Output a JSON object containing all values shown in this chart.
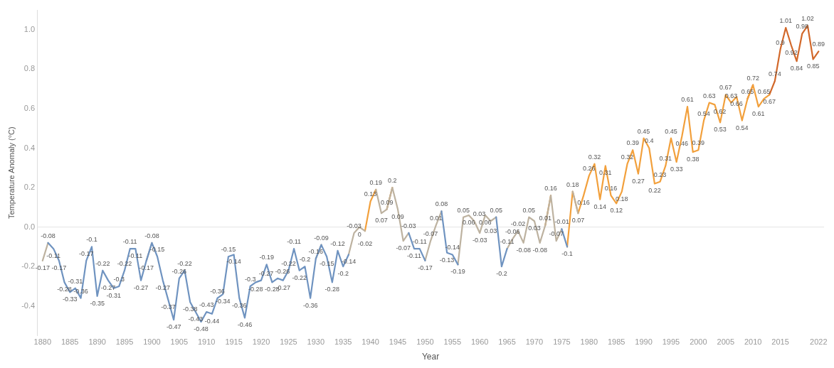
{
  "chart_data": {
    "type": "line",
    "xlabel": "Year",
    "ylabel": "Temperature Anomaly (°C)",
    "x": [
      1880,
      1881,
      1882,
      1883,
      1884,
      1885,
      1886,
      1887,
      1888,
      1889,
      1890,
      1891,
      1892,
      1893,
      1894,
      1895,
      1896,
      1897,
      1898,
      1899,
      1900,
      1901,
      1902,
      1903,
      1904,
      1905,
      1906,
      1907,
      1908,
      1909,
      1910,
      1911,
      1912,
      1913,
      1914,
      1915,
      1916,
      1917,
      1918,
      1919,
      1920,
      1921,
      1922,
      1923,
      1924,
      1925,
      1926,
      1927,
      1928,
      1929,
      1930,
      1931,
      1932,
      1933,
      1934,
      1935,
      1936,
      1937,
      1938,
      1939,
      1940,
      1941,
      1942,
      1943,
      1944,
      1945,
      1946,
      1947,
      1948,
      1949,
      1950,
      1951,
      1952,
      1953,
      1954,
      1955,
      1956,
      1957,
      1958,
      1959,
      1960,
      1961,
      1962,
      1963,
      1964,
      1965,
      1966,
      1967,
      1968,
      1969,
      1970,
      1971,
      1972,
      1973,
      1974,
      1975,
      1976,
      1977,
      1978,
      1979,
      1980,
      1981,
      1982,
      1983,
      1984,
      1985,
      1986,
      1987,
      1988,
      1989,
      1990,
      1991,
      1992,
      1993,
      1994,
      1995,
      1996,
      1997,
      1998,
      1999,
      2000,
      2001,
      2002,
      2003,
      2004,
      2005,
      2006,
      2007,
      2008,
      2009,
      2010,
      2011,
      2012,
      2013,
      2014,
      2015,
      2016,
      2017,
      2018,
      2019,
      2020,
      2021,
      2022
    ],
    "series": [
      {
        "color": "#6f93c0",
        "values": [
          null,
          -0.08,
          -0.11,
          -0.17,
          -0.28,
          -0.33,
          -0.31,
          -0.36,
          -0.17,
          -0.1,
          -0.35,
          -0.22,
          -0.27,
          -0.31,
          -0.3,
          -0.22,
          -0.11,
          -0.11,
          -0.27,
          -0.17,
          -0.08,
          -0.15,
          -0.27,
          -0.37,
          -0.47,
          -0.26,
          -0.22,
          -0.38,
          -0.43,
          -0.48,
          -0.43,
          -0.44,
          -0.36,
          -0.34,
          -0.15,
          -0.14,
          -0.36,
          -0.46,
          -0.3,
          -0.28,
          -0.27,
          -0.19,
          -0.28,
          -0.26,
          -0.27,
          -0.22,
          -0.11,
          -0.22,
          -0.2,
          -0.36,
          -0.16,
          -0.09,
          -0.15,
          -0.28,
          -0.12,
          -0.2,
          -0.14,
          null,
          null,
          null,
          null,
          null,
          null,
          null,
          null,
          null,
          null,
          -0.03,
          -0.11,
          -0.11,
          -0.17,
          null,
          null,
          0.08,
          -0.13,
          -0.14,
          -0.19,
          null,
          null,
          null,
          null,
          null,
          null,
          0.05,
          -0.2,
          -0.11,
          null,
          null,
          null,
          null,
          null,
          null,
          null,
          null,
          null,
          -0.01,
          -0.1,
          null,
          null,
          null,
          null,
          null,
          null,
          null,
          null,
          null,
          null,
          null,
          null,
          null,
          null,
          null,
          null,
          null,
          null,
          null,
          null,
          null,
          null,
          null,
          null,
          null,
          null,
          null,
          null,
          null,
          null,
          null,
          null,
          null,
          null,
          null,
          null,
          null,
          null,
          null,
          null,
          null,
          null,
          null,
          null,
          null,
          null
        ],
        "value_labels": [
          null,
          "-0.08",
          "-0.11",
          "-0.17",
          "-0.28",
          "-0.33",
          "-0.31",
          "-0.36",
          "-0.17",
          "-0.1",
          "-0.35",
          "-0.22",
          "-0.27",
          "-0.31",
          "-0.3",
          "-0.22",
          "-0.11",
          "-0.11",
          "-0.27",
          "-0.17",
          "-0.08",
          "-0.15",
          "-0.27",
          "-0.37",
          "-0.47",
          "-0.26",
          "-0.22",
          "-0.38",
          "-0.43",
          "-0.48",
          "-0.43",
          "-0.44",
          "-0.36",
          "-0.34",
          "-0.15",
          "-0.14",
          "-0.36",
          "-0.46",
          "-0.3",
          "-0.28",
          "-0.27",
          "-0.19",
          "-0.28",
          "-0.26",
          "-0.27",
          "-0.22",
          "-0.11",
          "-0.22",
          "-0.2",
          "-0.36",
          "-0.16",
          "-0.09",
          "-0.15",
          "-0.28",
          "-0.12",
          "-0.2",
          "-0.14",
          null,
          null,
          null,
          null,
          null,
          null,
          null,
          null,
          null,
          null,
          "-0.03",
          "-0.11",
          "-0.11",
          "-0.17",
          null,
          null,
          "0.08",
          "-0.13",
          "-0.14",
          "-0.19",
          null,
          null,
          null,
          null,
          null,
          null,
          "0.05",
          "-0.2",
          "-0.11",
          null,
          null,
          null,
          null,
          null,
          null,
          null,
          null,
          null,
          "-0.01",
          "-0.1",
          null,
          null,
          null,
          null,
          null,
          null,
          null,
          null,
          null,
          null,
          null,
          null,
          null,
          null,
          null,
          null,
          null,
          null,
          null,
          null,
          null,
          null,
          null,
          null,
          null,
          null,
          null,
          null,
          null,
          null,
          null,
          null,
          null,
          null,
          null,
          null,
          null,
          null,
          null,
          null,
          null,
          null,
          null,
          null,
          null,
          null
        ]
      },
      {
        "color": "#bdb2a0",
        "values": [
          -0.17,
          -0.08,
          null,
          null,
          null,
          null,
          null,
          null,
          null,
          null,
          null,
          null,
          null,
          null,
          null,
          null,
          null,
          null,
          null,
          -0.17,
          -0.08,
          null,
          null,
          null,
          null,
          null,
          null,
          null,
          null,
          null,
          null,
          null,
          null,
          null,
          null,
          null,
          null,
          null,
          null,
          null,
          null,
          null,
          null,
          null,
          null,
          null,
          null,
          null,
          null,
          null,
          -0.16,
          -0.09,
          null,
          null,
          null,
          null,
          -0.14,
          -0.03,
          0,
          -0.02,
          null,
          0.19,
          0.07,
          0.09,
          0.2,
          0.09,
          -0.07,
          -0.03,
          null,
          null,
          -0.17,
          -0.07,
          0.01,
          0.08,
          null,
          null,
          -0.19,
          0.05,
          0.06,
          0.03,
          -0.03,
          0.06,
          0.03,
          0.05,
          null,
          -0.11,
          -0.06,
          -0.02,
          -0.08,
          0.05,
          0.03,
          -0.08,
          0.01,
          0.16,
          -0.07,
          -0.01,
          null,
          0.18,
          0.07,
          null,
          null,
          null,
          null,
          null,
          null,
          null,
          null,
          null,
          null,
          null,
          null,
          null,
          null,
          null,
          null,
          null,
          null,
          null,
          null,
          null,
          null,
          null,
          null,
          null,
          null,
          null,
          null,
          null,
          null,
          null,
          null,
          null,
          null,
          null,
          null,
          null,
          null,
          null,
          null,
          null,
          null,
          null,
          null
        ],
        "value_labels": [
          "-0.17",
          null,
          null,
          null,
          null,
          null,
          null,
          null,
          null,
          null,
          null,
          null,
          null,
          null,
          null,
          null,
          null,
          null,
          null,
          null,
          null,
          null,
          null,
          null,
          null,
          null,
          null,
          null,
          null,
          null,
          null,
          null,
          null,
          null,
          null,
          null,
          null,
          null,
          null,
          null,
          null,
          null,
          null,
          null,
          null,
          null,
          null,
          null,
          null,
          null,
          null,
          null,
          null,
          null,
          null,
          null,
          null,
          "-0.03",
          "0",
          "-0.02",
          null,
          "0.19",
          "0.07",
          "0.09",
          "0.2",
          "0.09",
          "-0.07",
          null,
          null,
          null,
          null,
          "-0.07",
          "0.01",
          null,
          null,
          null,
          null,
          "0.05",
          "0.06",
          "0.03",
          "-0.03",
          "0.06",
          "0.03",
          null,
          null,
          null,
          "-0.06",
          "-0.02",
          "-0.08",
          "0.05",
          "0.03",
          "-0.08",
          "0.01",
          "0.16",
          "-0.07",
          null,
          null,
          "0.18",
          "0.07",
          null,
          null,
          null,
          null,
          null,
          null,
          null,
          null,
          null,
          null,
          null,
          null,
          null,
          null,
          null,
          null,
          null,
          null,
          null,
          null,
          null,
          null,
          null,
          null,
          null,
          null,
          null,
          null,
          null,
          null,
          null,
          null,
          null,
          null,
          null,
          null,
          null,
          null,
          null,
          null,
          null,
          null,
          null,
          null
        ]
      },
      {
        "color": "#f2a03c",
        "values": [
          null,
          null,
          null,
          null,
          null,
          null,
          null,
          null,
          null,
          null,
          null,
          null,
          null,
          null,
          null,
          null,
          null,
          null,
          null,
          null,
          null,
          null,
          null,
          null,
          null,
          null,
          null,
          null,
          null,
          null,
          null,
          null,
          null,
          null,
          null,
          null,
          null,
          null,
          null,
          null,
          null,
          null,
          null,
          null,
          null,
          null,
          null,
          null,
          null,
          null,
          null,
          null,
          null,
          null,
          null,
          null,
          null,
          null,
          null,
          -0.02,
          0.13,
          0.19,
          null,
          0.09,
          0.2,
          null,
          null,
          null,
          null,
          null,
          null,
          null,
          null,
          null,
          null,
          null,
          null,
          null,
          null,
          null,
          null,
          null,
          null,
          null,
          null,
          null,
          null,
          null,
          null,
          null,
          null,
          null,
          0.01,
          0.16,
          null,
          null,
          -0.1,
          0.18,
          0.07,
          0.16,
          0.26,
          0.32,
          0.14,
          0.31,
          0.16,
          0.12,
          0.18,
          0.32,
          0.39,
          0.27,
          0.45,
          0.4,
          0.22,
          0.23,
          0.31,
          0.45,
          0.33,
          0.46,
          0.61,
          0.38,
          0.39,
          0.54,
          0.63,
          0.62,
          0.53,
          0.67,
          0.63,
          0.66,
          0.54,
          0.65,
          0.72,
          0.61,
          0.65,
          0.67,
          null,
          null,
          null,
          null,
          null,
          null,
          null,
          null,
          null
        ],
        "value_labels": [
          null,
          null,
          null,
          null,
          null,
          null,
          null,
          null,
          null,
          null,
          null,
          null,
          null,
          null,
          null,
          null,
          null,
          null,
          null,
          null,
          null,
          null,
          null,
          null,
          null,
          null,
          null,
          null,
          null,
          null,
          null,
          null,
          null,
          null,
          null,
          null,
          null,
          null,
          null,
          null,
          null,
          null,
          null,
          null,
          null,
          null,
          null,
          null,
          null,
          null,
          null,
          null,
          null,
          null,
          null,
          null,
          null,
          null,
          null,
          null,
          "0.13",
          null,
          null,
          null,
          null,
          null,
          null,
          null,
          null,
          null,
          null,
          null,
          null,
          null,
          null,
          null,
          null,
          null,
          null,
          null,
          null,
          null,
          null,
          null,
          null,
          null,
          null,
          null,
          null,
          null,
          null,
          null,
          null,
          null,
          null,
          null,
          null,
          null,
          null,
          "0.16",
          "0.26",
          "0.32",
          "0.14",
          "0.31",
          "0.16",
          "0.12",
          "0.18",
          "0.32",
          "0.39",
          "0.27",
          "0.45",
          "0.4",
          "0.22",
          "0.23",
          "0.31",
          "0.45",
          "0.33",
          "0.46",
          "0.61",
          "0.38",
          "0.39",
          "0.54",
          "0.63",
          "0.62",
          "0.53",
          "0.67",
          "0.63",
          "0.66",
          "0.54",
          "0.65",
          "0.72",
          "0.61",
          "0.65",
          "0.67",
          null,
          null,
          null,
          null,
          null,
          null,
          null,
          null,
          null
        ]
      },
      {
        "color": "#d2682a",
        "values": [
          null,
          null,
          null,
          null,
          null,
          null,
          null,
          null,
          null,
          null,
          null,
          null,
          null,
          null,
          null,
          null,
          null,
          null,
          null,
          null,
          null,
          null,
          null,
          null,
          null,
          null,
          null,
          null,
          null,
          null,
          null,
          null,
          null,
          null,
          null,
          null,
          null,
          null,
          null,
          null,
          null,
          null,
          null,
          null,
          null,
          null,
          null,
          null,
          null,
          null,
          null,
          null,
          null,
          null,
          null,
          null,
          null,
          null,
          null,
          null,
          null,
          null,
          null,
          null,
          null,
          null,
          null,
          null,
          null,
          null,
          null,
          null,
          null,
          null,
          null,
          null,
          null,
          null,
          null,
          null,
          null,
          null,
          null,
          null,
          null,
          null,
          null,
          null,
          null,
          null,
          null,
          null,
          null,
          null,
          null,
          null,
          null,
          null,
          null,
          null,
          null,
          null,
          null,
          null,
          null,
          null,
          null,
          null,
          null,
          null,
          null,
          null,
          null,
          null,
          null,
          null,
          null,
          null,
          null,
          null,
          null,
          null,
          null,
          null,
          null,
          null,
          null,
          null,
          null,
          0.65,
          0.72,
          null,
          null,
          0.67,
          0.74,
          0.9,
          1.01,
          0.92,
          0.84,
          0.98,
          1.02,
          0.85,
          0.89
        ],
        "value_labels": [
          null,
          null,
          null,
          null,
          null,
          null,
          null,
          null,
          null,
          null,
          null,
          null,
          null,
          null,
          null,
          null,
          null,
          null,
          null,
          null,
          null,
          null,
          null,
          null,
          null,
          null,
          null,
          null,
          null,
          null,
          null,
          null,
          null,
          null,
          null,
          null,
          null,
          null,
          null,
          null,
          null,
          null,
          null,
          null,
          null,
          null,
          null,
          null,
          null,
          null,
          null,
          null,
          null,
          null,
          null,
          null,
          null,
          null,
          null,
          null,
          null,
          null,
          null,
          null,
          null,
          null,
          null,
          null,
          null,
          null,
          null,
          null,
          null,
          null,
          null,
          null,
          null,
          null,
          null,
          null,
          null,
          null,
          null,
          null,
          null,
          null,
          null,
          null,
          null,
          null,
          null,
          null,
          null,
          null,
          null,
          null,
          null,
          null,
          null,
          null,
          null,
          null,
          null,
          null,
          null,
          null,
          null,
          null,
          null,
          null,
          null,
          null,
          null,
          null,
          null,
          null,
          null,
          null,
          null,
          null,
          null,
          null,
          null,
          null,
          null,
          null,
          null,
          null,
          null,
          null,
          null,
          null,
          null,
          null,
          "0.74",
          "0.9",
          "1.01",
          "0.92",
          "0.84",
          "0.98",
          "1.02",
          "0.85",
          "0.89"
        ]
      }
    ],
    "xlim": [
      1879,
      2023
    ],
    "xticks": [
      1880,
      1885,
      1890,
      1895,
      1900,
      1905,
      1910,
      1915,
      1920,
      1925,
      1930,
      1935,
      1940,
      1945,
      1950,
      1955,
      1960,
      1965,
      1970,
      1975,
      1980,
      1985,
      1990,
      1995,
      2000,
      2005,
      2010,
      2015,
      2022
    ],
    "ylim": [
      -0.55,
      1.1
    ],
    "yticks": [
      {
        "value": -0.4,
        "label": "-0.4"
      },
      {
        "value": -0.2,
        "label": "-0.2"
      },
      {
        "value": 0,
        "label": "0.0"
      },
      {
        "value": 0.2,
        "label": "0.2"
      },
      {
        "value": 0.4,
        "label": "0.4"
      },
      {
        "value": 0.6,
        "label": "0.6"
      },
      {
        "value": 0.8,
        "label": "0.8"
      },
      {
        "value": 1,
        "label": "1.0"
      }
    ],
    "ref_lines": [
      {
        "axis": "y",
        "value": 0,
        "color": "#e4e4e4"
      }
    ],
    "grid": false,
    "legend": false,
    "marker": "none",
    "line_style": "solid"
  }
}
